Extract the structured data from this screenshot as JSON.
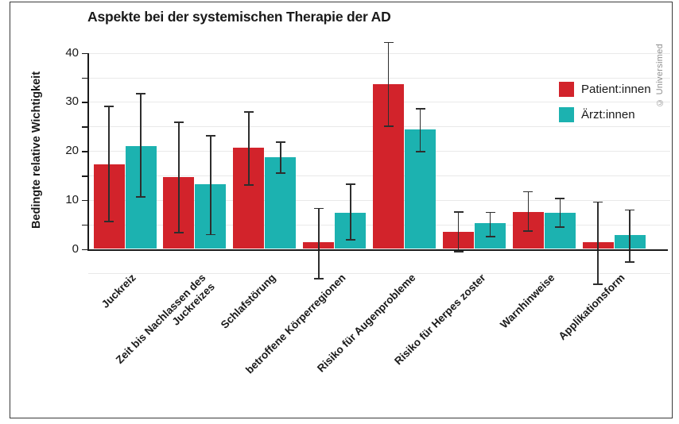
{
  "watermark": {
    "text": "© Universimed"
  },
  "chart_data": {
    "type": "bar",
    "title": "Aspekte bei der systemischen Therapie der AD",
    "xlabel": "",
    "ylabel": "Bedingte relative Wichtigkeit",
    "categories": [
      "Juckreiz",
      "Zeit bis Nachlassen des\nJuckreizes",
      "Schlafstörung",
      "betroffene Körperregionen",
      "Risiko für Augenprobleme",
      "Risiko für Herpes zoster",
      "Warnhinweise",
      "Applikationsform"
    ],
    "series": [
      {
        "name": "Patient:innen",
        "color": "#d2232b",
        "values": [
          17.3,
          14.6,
          20.6,
          1.3,
          33.6,
          3.5,
          7.5,
          1.3
        ],
        "ci_low": [
          5.6,
          3.3,
          13.0,
          -6.1,
          25.0,
          -0.6,
          3.6,
          -7.2
        ],
        "ci_high": [
          29.2,
          26.0,
          28.1,
          8.4,
          42.3,
          7.7,
          11.8,
          9.7
        ]
      },
      {
        "name": "Ärzt:innen",
        "color": "#1cb2b0",
        "values": [
          21.0,
          13.2,
          18.7,
          7.4,
          24.4,
          5.2,
          7.4,
          2.9
        ],
        "ci_low": [
          10.6,
          2.9,
          15.5,
          1.9,
          19.9,
          2.5,
          4.5,
          -2.7
        ],
        "ci_high": [
          31.8,
          23.3,
          22.0,
          13.4,
          28.7,
          7.6,
          10.5,
          8.1
        ]
      }
    ],
    "error_bars": true,
    "ylim": [
      -7.5,
      42.5
    ],
    "ytick_step": 5,
    "yticks_labeled": [
      0,
      10,
      20,
      30,
      40
    ],
    "grid": "horizontal every 5",
    "legend_position": "top-right"
  }
}
